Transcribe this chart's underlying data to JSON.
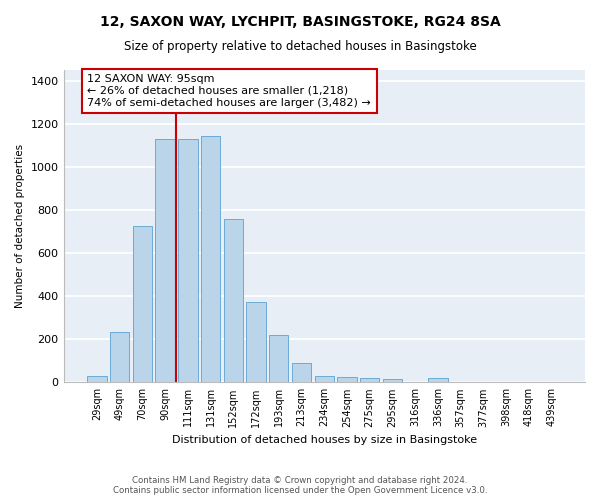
{
  "title": "12, SAXON WAY, LYCHPIT, BASINGSTOKE, RG24 8SA",
  "subtitle": "Size of property relative to detached houses in Basingstoke",
  "xlabel": "Distribution of detached houses by size in Basingstoke",
  "ylabel": "Number of detached properties",
  "footer1": "Contains HM Land Registry data © Crown copyright and database right 2024.",
  "footer2": "Contains public sector information licensed under the Open Government Licence v3.0.",
  "categories": [
    "29sqm",
    "49sqm",
    "70sqm",
    "90sqm",
    "111sqm",
    "131sqm",
    "152sqm",
    "172sqm",
    "193sqm",
    "213sqm",
    "234sqm",
    "254sqm",
    "275sqm",
    "295sqm",
    "316sqm",
    "336sqm",
    "357sqm",
    "377sqm",
    "398sqm",
    "418sqm",
    "439sqm"
  ],
  "values": [
    30,
    235,
    725,
    1130,
    1130,
    1145,
    760,
    375,
    220,
    90,
    30,
    25,
    20,
    15,
    0,
    20,
    0,
    0,
    0,
    0,
    0
  ],
  "bar_color": "#bad4ea",
  "bar_edge_color": "#6aabd5",
  "background_color": "#e8eef6",
  "grid_color": "#ffffff",
  "annotation_text_line1": "12 SAXON WAY: 95sqm",
  "annotation_text_line2": "← 26% of detached houses are smaller (1,218)",
  "annotation_text_line3": "74% of semi-detached houses are larger (3,482) →",
  "annotation_box_edgecolor": "#cc0000",
  "vline_color": "#cc0000",
  "vline_position": 3.5,
  "ylim": [
    0,
    1450
  ],
  "yticks": [
    0,
    200,
    400,
    600,
    800,
    1000,
    1200,
    1400
  ],
  "figsize": [
    6.0,
    5.0
  ],
  "dpi": 100
}
